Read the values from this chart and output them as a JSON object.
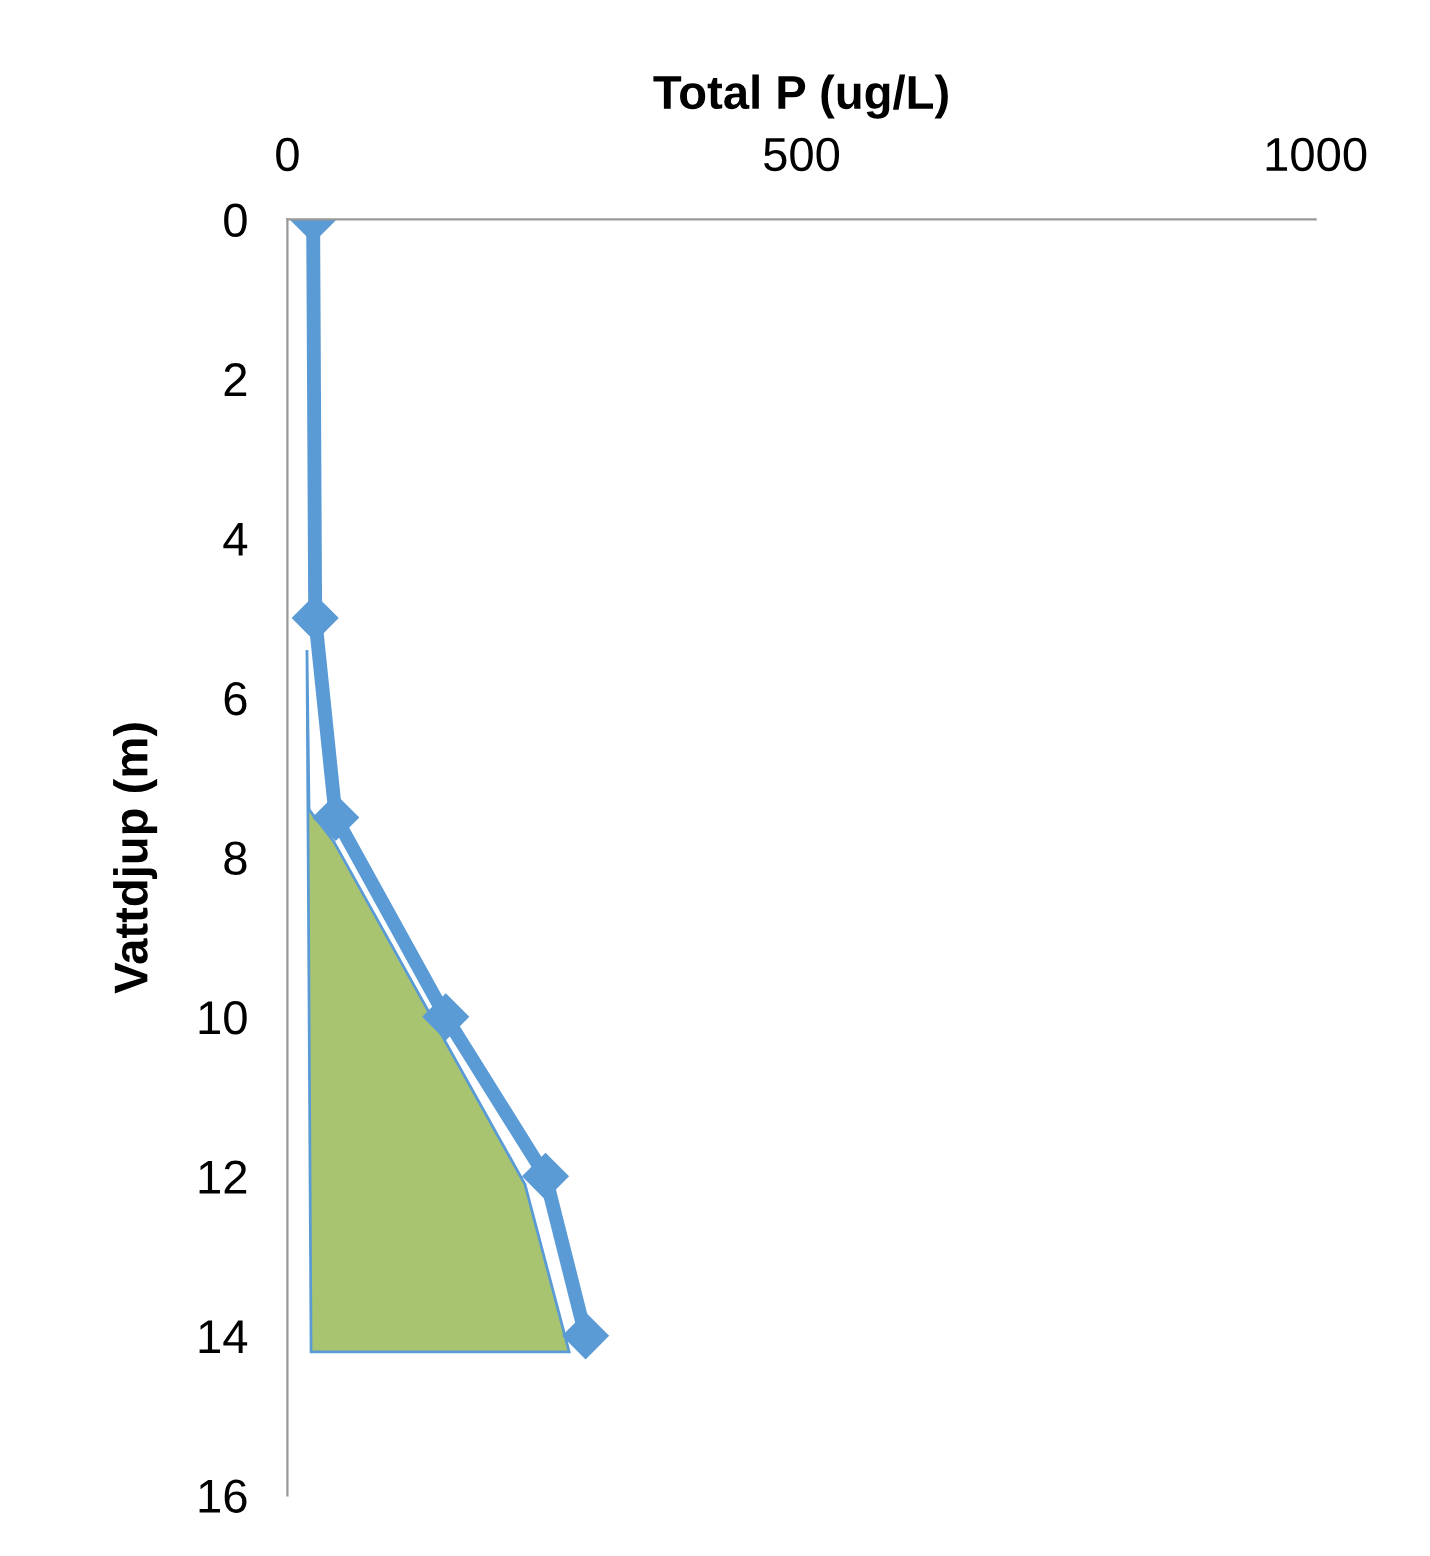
{
  "chart_data": {
    "type": "line",
    "xlabel": "Total P (ug/L)",
    "ylabel": "Vattdjup (m)",
    "xlim": [
      0,
      1000
    ],
    "xticks": [
      0,
      500,
      1000
    ],
    "ylim": [
      16,
      0
    ],
    "yticks": [
      0,
      2,
      4,
      6,
      8,
      10,
      12,
      14,
      16
    ],
    "grid": false,
    "legend": false,
    "series": [
      {
        "type": "area",
        "color": "#a9c470",
        "x": [
          19,
          21,
          45,
          231,
          274,
          23
        ],
        "values": [
          5.4,
          7.4,
          7.8,
          12.1,
          14.2,
          14.2
        ]
      },
      {
        "color": "#5b9bd5",
        "marker": "diamond",
        "line_style": "solid",
        "x": [
          25,
          27,
          47,
          154,
          251,
          290
        ],
        "values": [
          0,
          5,
          7.5,
          10,
          12,
          14
        ]
      }
    ]
  }
}
